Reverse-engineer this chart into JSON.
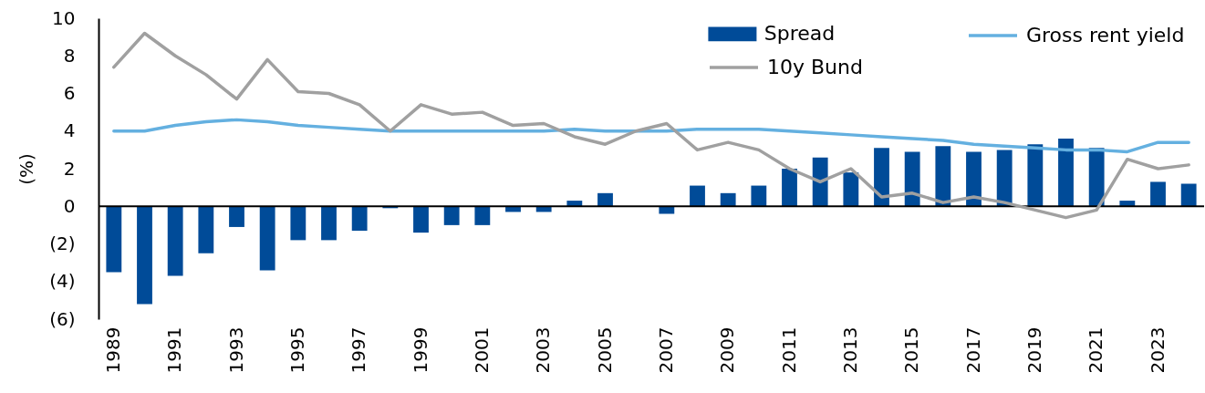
{
  "chart_data": {
    "type": "bar",
    "ylabel": "(%)",
    "categories": [
      "1989",
      null,
      "1991",
      null,
      "1993",
      null,
      "1995",
      null,
      "1997",
      null,
      "1999",
      null,
      "2001",
      null,
      "2003",
      null,
      "2005",
      null,
      "2007",
      null,
      "2009",
      null,
      "2011",
      null,
      "2013",
      null,
      "2015",
      null,
      "2017",
      null,
      "2019",
      null,
      "2021",
      null,
      "2023",
      null
    ],
    "series": [
      {
        "name": "Spread",
        "color": "#004b98",
        "values": [
          -3.5,
          -5.2,
          -3.7,
          -2.5,
          -1.1,
          -3.4,
          -1.8,
          -1.8,
          -1.3,
          -0.1,
          -1.4,
          -1.0,
          -1.0,
          -0.3,
          -0.3,
          0.3,
          0.7,
          0,
          -0.4,
          1.1,
          0.7,
          1.1,
          2.0,
          2.6,
          1.8,
          3.1,
          2.9,
          3.2,
          2.9,
          3.0,
          3.3,
          3.6,
          3.1,
          0.3,
          1.3,
          1.2
        ]
      },
      {
        "name": "Gross rent yield",
        "type": "line",
        "color": "#64b0e0",
        "values": [
          4.0,
          4.0,
          4.3,
          4.5,
          4.6,
          4.5,
          4.3,
          4.2,
          4.1,
          4.0,
          4.0,
          4.0,
          4.0,
          4.0,
          4.0,
          4.1,
          4.0,
          4.0,
          4.0,
          4.1,
          4.1,
          4.1,
          4.0,
          3.9,
          3.8,
          3.7,
          3.6,
          3.5,
          3.3,
          3.2,
          3.1,
          3.0,
          3.0,
          2.9,
          3.4,
          3.4
        ]
      },
      {
        "name": "10y Bund",
        "type": "line",
        "color": "#a0a0a0",
        "values": [
          7.4,
          9.2,
          8.0,
          7.0,
          5.7,
          7.8,
          6.1,
          6.0,
          5.4,
          4.0,
          5.4,
          4.9,
          5.0,
          4.3,
          4.4,
          3.7,
          3.3,
          4.0,
          4.4,
          3.0,
          3.4,
          3.0,
          2.0,
          1.3,
          2.0,
          0.5,
          0.7,
          0.2,
          0.5,
          0.2,
          -0.2,
          -0.6,
          -0.2,
          2.5,
          2.0,
          2.2
        ]
      }
    ],
    "ylim": [
      -6,
      10
    ],
    "yticks": [
      10,
      8,
      6,
      4,
      2,
      0,
      {
        "value": -2,
        "label": "(2)"
      },
      {
        "value": -4,
        "label": "(4)"
      },
      {
        "value": -6,
        "label": "(6)"
      }
    ],
    "ref_lines": [
      {
        "axis": "y",
        "value": 0,
        "color": "#000000"
      }
    ],
    "legend": "top right",
    "grid": false
  }
}
